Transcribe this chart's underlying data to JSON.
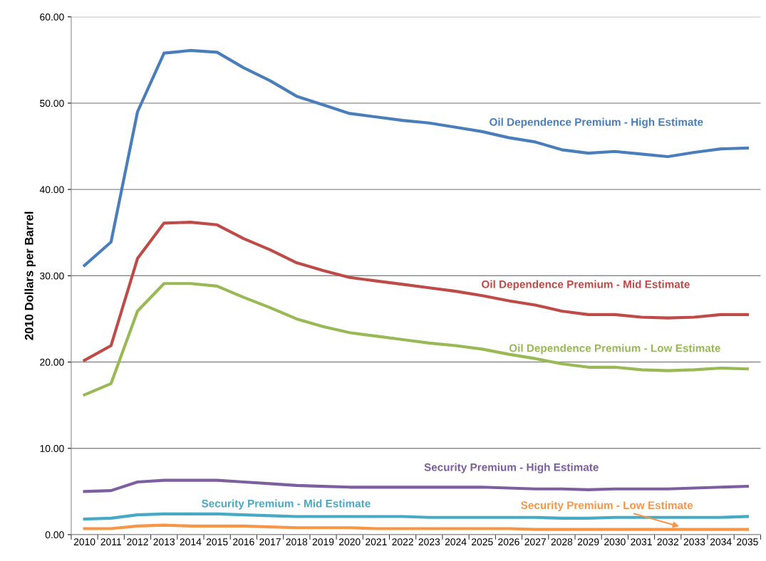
{
  "chart_data": {
    "type": "line",
    "ylabel": "2010 Dollars per Barrel",
    "categories": [
      "2010",
      "2011",
      "2012",
      "2013",
      "2014",
      "2015",
      "2016",
      "2017",
      "2018",
      "2019",
      "2020",
      "2021",
      "2022",
      "2023",
      "2024",
      "2025",
      "2026",
      "2027",
      "2028",
      "2029",
      "2030",
      "2031",
      "2032",
      "2033",
      "2034",
      "2035"
    ],
    "series": [
      {
        "name": "Oil Dependence Premium - High Estimate",
        "color": "#4a7ebb",
        "values": [
          31.2,
          33.9,
          49.0,
          55.8,
          56.1,
          55.9,
          54.1,
          52.6,
          50.8,
          49.8,
          48.8,
          48.4,
          48.0,
          47.7,
          47.2,
          46.7,
          46.0,
          45.5,
          44.6,
          44.2,
          44.4,
          44.1,
          43.8,
          44.3,
          44.7,
          44.8
        ]
      },
      {
        "name": "Oil Dependence Premium - Mid Estimate",
        "color": "#be4b48",
        "values": [
          20.2,
          21.9,
          32.0,
          36.1,
          36.2,
          35.9,
          34.3,
          33.0,
          31.5,
          30.6,
          29.8,
          29.4,
          29.0,
          28.6,
          28.2,
          27.7,
          27.1,
          26.6,
          25.9,
          25.5,
          25.5,
          25.2,
          25.1,
          25.2,
          25.5,
          25.5
        ]
      },
      {
        "name": "Oil Dependence Premium - Low Estimate",
        "color": "#98b954",
        "values": [
          16.2,
          17.5,
          25.9,
          29.1,
          29.1,
          28.8,
          27.5,
          26.3,
          25.0,
          24.1,
          23.4,
          23.0,
          22.6,
          22.2,
          21.9,
          21.5,
          20.9,
          20.4,
          19.8,
          19.4,
          19.4,
          19.1,
          19.0,
          19.1,
          19.3,
          19.2
        ]
      },
      {
        "name": "Security Premium - High Estimate",
        "color": "#7d5fa0",
        "values": [
          5.0,
          5.1,
          6.1,
          6.3,
          6.3,
          6.3,
          6.1,
          5.9,
          5.7,
          5.6,
          5.5,
          5.5,
          5.5,
          5.5,
          5.5,
          5.5,
          5.4,
          5.3,
          5.3,
          5.2,
          5.3,
          5.3,
          5.3,
          5.4,
          5.5,
          5.6
        ]
      },
      {
        "name": "Security Premium - Mid Estimate",
        "color": "#46aac5",
        "values": [
          1.8,
          1.9,
          2.3,
          2.4,
          2.4,
          2.4,
          2.3,
          2.2,
          2.1,
          2.1,
          2.1,
          2.1,
          2.1,
          2.0,
          2.0,
          2.0,
          2.0,
          2.0,
          1.9,
          1.9,
          2.0,
          2.0,
          2.0,
          2.0,
          2.0,
          2.1
        ]
      },
      {
        "name": "Security Premium - Low Estimate",
        "color": "#f79646",
        "values": [
          0.7,
          0.7,
          1.0,
          1.1,
          1.0,
          1.0,
          1.0,
          0.9,
          0.8,
          0.8,
          0.8,
          0.7,
          0.7,
          0.7,
          0.7,
          0.7,
          0.7,
          0.6,
          0.6,
          0.6,
          0.6,
          0.6,
          0.6,
          0.6,
          0.6,
          0.6
        ]
      }
    ],
    "ylim": [
      0,
      60
    ],
    "yticks": [
      {
        "value": 0,
        "label": "0.00"
      },
      {
        "value": 10,
        "label": "10.00"
      },
      {
        "value": 20,
        "label": "20.00"
      },
      {
        "value": 30,
        "label": "30.00"
      },
      {
        "value": 40,
        "label": "40.00"
      },
      {
        "value": 50,
        "label": "50.00"
      },
      {
        "value": 60,
        "label": "60.00"
      }
    ],
    "grid": "y",
    "marker": "none",
    "line_style": "solid"
  }
}
